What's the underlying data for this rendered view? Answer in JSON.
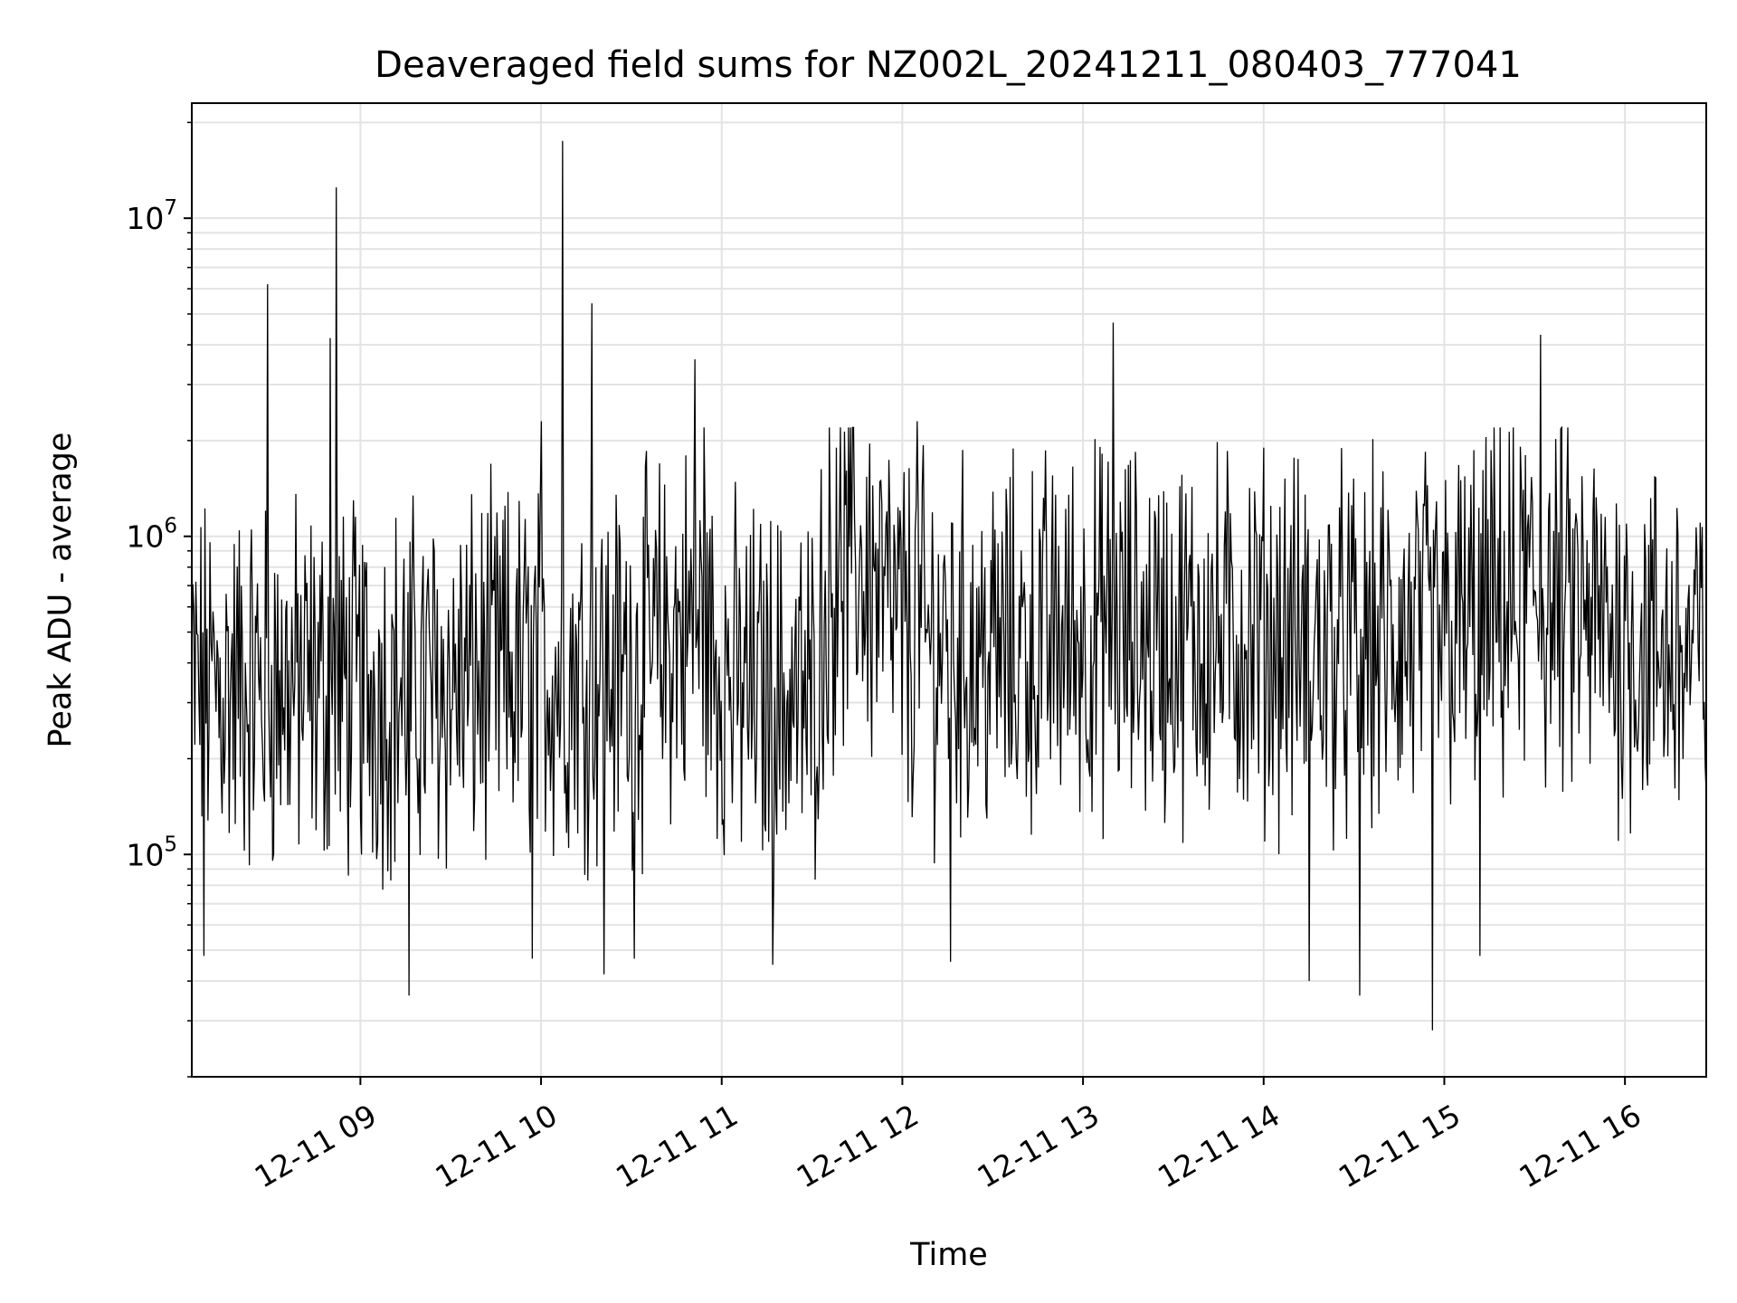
{
  "chart_data": {
    "type": "line",
    "title": "Deaveraged field sums for NZ002L_20241211_080403_777041",
    "xlabel": "Time",
    "ylabel": "Peak ADU - average",
    "yscale": "log",
    "ylim": [
      20000,
      23000000
    ],
    "xlim": [
      "2024-12-11 08:04",
      "2024-12-11 16:27"
    ],
    "grid": true,
    "x_ticks": [
      {
        "value": "2024-12-11 09:00",
        "label": "12-11 09"
      },
      {
        "value": "2024-12-11 10:00",
        "label": "12-11 10"
      },
      {
        "value": "2024-12-11 11:00",
        "label": "12-11 11"
      },
      {
        "value": "2024-12-11 12:00",
        "label": "12-11 12"
      },
      {
        "value": "2024-12-11 13:00",
        "label": "12-11 13"
      },
      {
        "value": "2024-12-11 14:00",
        "label": "12-11 14"
      },
      {
        "value": "2024-12-11 15:00",
        "label": "12-11 15"
      },
      {
        "value": "2024-12-11 16:00",
        "label": "12-11 16"
      }
    ],
    "y_ticks": [
      {
        "value": 100000,
        "base": "10",
        "exp": "5"
      },
      {
        "value": 1000000,
        "base": "10",
        "exp": "6"
      },
      {
        "value": 10000000,
        "base": "10",
        "exp": "7"
      }
    ],
    "series": [
      {
        "line_color": "#000000",
        "noise_level": [
          {
            "x": "2024-12-11 08:04",
            "y": 330000
          },
          {
            "x": "2024-12-11 08:30",
            "y": 340000
          },
          {
            "x": "2024-12-11 09:00",
            "y": 330000
          },
          {
            "x": "2024-12-11 09:30",
            "y": 340000
          },
          {
            "x": "2024-12-11 10:00",
            "y": 380000
          },
          {
            "x": "2024-12-11 10:30",
            "y": 380000
          },
          {
            "x": "2024-12-11 10:50",
            "y": 520000
          },
          {
            "x": "2024-12-11 11:05",
            "y": 330000
          },
          {
            "x": "2024-12-11 11:30",
            "y": 300000
          },
          {
            "x": "2024-12-11 11:35",
            "y": 700000
          },
          {
            "x": "2024-12-11 11:45",
            "y": 850000
          },
          {
            "x": "2024-12-11 12:00",
            "y": 480000
          },
          {
            "x": "2024-12-11 12:30",
            "y": 420000
          },
          {
            "x": "2024-12-11 13:00",
            "y": 500000
          },
          {
            "x": "2024-12-11 13:30",
            "y": 480000
          },
          {
            "x": "2024-12-11 14:00",
            "y": 480000
          },
          {
            "x": "2024-12-11 14:30",
            "y": 430000
          },
          {
            "x": "2024-12-11 15:00",
            "y": 480000
          },
          {
            "x": "2024-12-11 15:30",
            "y": 620000
          },
          {
            "x": "2024-12-11 16:00",
            "y": 480000
          },
          {
            "x": "2024-12-11 16:27",
            "y": 400000
          }
        ],
        "peaks": [
          {
            "x": "2024-12-11 08:29",
            "y": 6200000
          },
          {
            "x": "2024-12-11 08:50",
            "y": 4200000
          },
          {
            "x": "2024-12-11 08:52",
            "y": 12500000
          },
          {
            "x": "2024-12-11 10:00",
            "y": 2300000
          },
          {
            "x": "2024-12-11 10:07",
            "y": 17500000
          },
          {
            "x": "2024-12-11 10:17",
            "y": 5400000
          },
          {
            "x": "2024-12-11 10:51",
            "y": 3600000
          },
          {
            "x": "2024-12-11 10:54",
            "y": 2200000
          },
          {
            "x": "2024-12-11 11:38",
            "y": 1900000
          },
          {
            "x": "2024-12-11 12:05",
            "y": 2300000
          },
          {
            "x": "2024-12-11 13:10",
            "y": 4700000
          },
          {
            "x": "2024-12-11 15:32",
            "y": 4300000
          },
          {
            "x": "2024-12-11 15:27",
            "y": 1800000
          }
        ],
        "dips": [
          {
            "x": "2024-12-11 08:08",
            "y": 48000
          },
          {
            "x": "2024-12-11 09:16",
            "y": 36000
          },
          {
            "x": "2024-12-11 09:57",
            "y": 47000
          },
          {
            "x": "2024-12-11 10:21",
            "y": 42000
          },
          {
            "x": "2024-12-11 10:31",
            "y": 47000
          },
          {
            "x": "2024-12-11 11:17",
            "y": 45000
          },
          {
            "x": "2024-12-11 12:16",
            "y": 46000
          },
          {
            "x": "2024-12-11 14:15",
            "y": 40000
          },
          {
            "x": "2024-12-11 14:32",
            "y": 36000
          },
          {
            "x": "2024-12-11 14:56",
            "y": 28000
          },
          {
            "x": "2024-12-11 15:12",
            "y": 48000
          }
        ]
      }
    ]
  }
}
